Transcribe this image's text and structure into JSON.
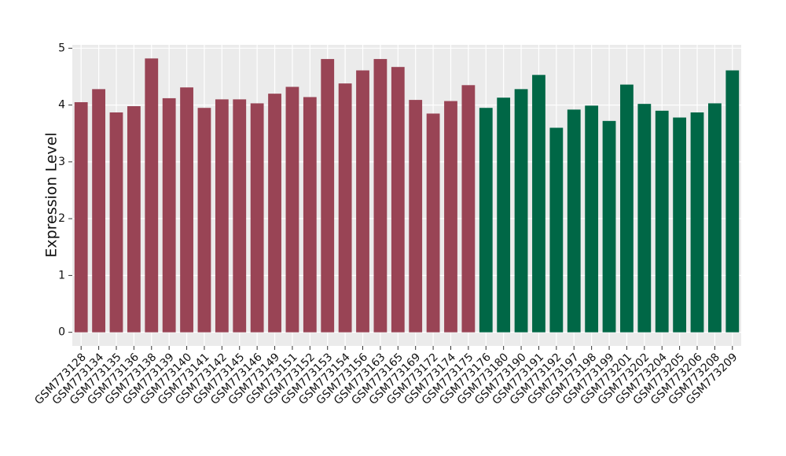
{
  "chart_data": {
    "type": "bar",
    "y_label": "Expression Level",
    "categories": [
      "GSM773128",
      "GSM773134",
      "GSM773135",
      "GSM773136",
      "GSM773138",
      "GSM773139",
      "GSM773140",
      "GSM773141",
      "GSM773142",
      "GSM773145",
      "GSM773146",
      "GSM773149",
      "GSM773151",
      "GSM773152",
      "GSM773153",
      "GSM773154",
      "GSM773156",
      "GSM773163",
      "GSM773165",
      "GSM773169",
      "GSM773172",
      "GSM773174",
      "GSM773175",
      "GSM773176",
      "GSM773180",
      "GSM773190",
      "GSM773191",
      "GSM773192",
      "GSM773197",
      "GSM773198",
      "GSM773199",
      "GSM773201",
      "GSM773202",
      "GSM773204",
      "GSM773205",
      "GSM773206",
      "GSM773208",
      "GSM773209"
    ],
    "values": [
      4.05,
      4.28,
      3.87,
      3.98,
      4.82,
      4.12,
      4.31,
      3.95,
      4.1,
      4.1,
      4.03,
      4.2,
      4.32,
      4.14,
      4.81,
      4.38,
      4.61,
      4.81,
      4.67,
      4.09,
      3.85,
      4.07,
      4.35,
      3.95,
      4.13,
      4.28,
      4.53,
      3.6,
      3.92,
      3.99,
      3.72,
      4.36,
      4.02,
      3.9,
      3.78,
      3.87,
      4.03,
      4.61
    ],
    "colors": [
      "#994455",
      "#994455",
      "#994455",
      "#994455",
      "#994455",
      "#994455",
      "#994455",
      "#994455",
      "#994455",
      "#994455",
      "#994455",
      "#994455",
      "#994455",
      "#994455",
      "#994455",
      "#994455",
      "#994455",
      "#994455",
      "#994455",
      "#994455",
      "#994455",
      "#994455",
      "#994455",
      "#006746",
      "#006746",
      "#006746",
      "#006746",
      "#006746",
      "#006746",
      "#006746",
      "#006746",
      "#006746",
      "#006746",
      "#006746",
      "#006746",
      "#006746",
      "#006746",
      "#006746"
    ],
    "ylim": [
      -0.24,
      5.06
    ],
    "yticks": [
      0,
      1,
      2,
      3,
      4,
      5
    ],
    "grid": true
  }
}
